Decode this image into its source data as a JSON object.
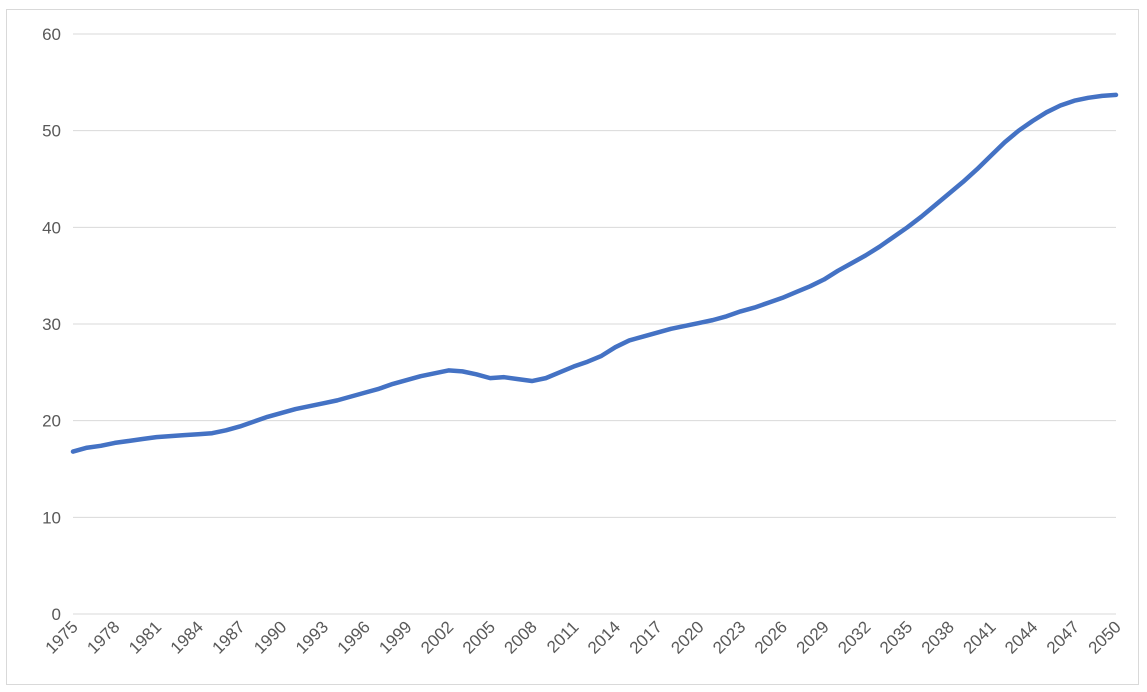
{
  "chart_data": {
    "type": "line",
    "title": "",
    "xlabel": "",
    "ylabel": "",
    "ylim": [
      0,
      60
    ],
    "y_ticks": [
      "0",
      "10",
      "20",
      "30",
      "40",
      "50",
      "60"
    ],
    "x_ticks": [
      "1975",
      "1978",
      "1981",
      "1984",
      "1987",
      "1990",
      "1993",
      "1996",
      "1999",
      "2002",
      "2005",
      "2008",
      "2011",
      "2014",
      "2017",
      "2020",
      "2023",
      "2026",
      "2029",
      "2032",
      "2035",
      "2038",
      "2041",
      "2044",
      "2047",
      "2050"
    ],
    "grid": "horizontal",
    "legend": "none",
    "colors": {
      "line": "#4472c4",
      "grid": "#d9d9d9",
      "text": "#595959"
    },
    "x": [
      1975,
      1976,
      1977,
      1978,
      1979,
      1980,
      1981,
      1982,
      1983,
      1984,
      1985,
      1986,
      1987,
      1988,
      1989,
      1990,
      1991,
      1992,
      1993,
      1994,
      1995,
      1996,
      1997,
      1998,
      1999,
      2000,
      2001,
      2002,
      2003,
      2004,
      2005,
      2006,
      2007,
      2008,
      2009,
      2010,
      2011,
      2012,
      2013,
      2014,
      2015,
      2016,
      2017,
      2018,
      2019,
      2020,
      2021,
      2022,
      2023,
      2024,
      2025,
      2026,
      2027,
      2028,
      2029,
      2030,
      2031,
      2032,
      2033,
      2034,
      2035,
      2036,
      2037,
      2038,
      2039,
      2040,
      2041,
      2042,
      2043,
      2044,
      2045,
      2046,
      2047,
      2048,
      2049,
      2050
    ],
    "series": [
      {
        "values": [
          16.8,
          17.2,
          17.4,
          17.7,
          17.9,
          18.1,
          18.3,
          18.4,
          18.5,
          18.6,
          18.7,
          19.0,
          19.4,
          19.9,
          20.4,
          20.8,
          21.2,
          21.5,
          21.8,
          22.1,
          22.5,
          22.9,
          23.3,
          23.8,
          24.2,
          24.6,
          24.9,
          25.2,
          25.1,
          24.8,
          24.4,
          24.5,
          24.3,
          24.1,
          24.4,
          25.0,
          25.6,
          26.1,
          26.7,
          27.6,
          28.3,
          28.7,
          29.1,
          29.5,
          29.8,
          30.1,
          30.4,
          30.8,
          31.3,
          31.7,
          32.2,
          32.7,
          33.3,
          33.9,
          34.6,
          35.5,
          36.3,
          37.1,
          38.0,
          39.0,
          40.0,
          41.1,
          42.3,
          43.5,
          44.7,
          46.0,
          47.4,
          48.8,
          50.0,
          51.0,
          51.9,
          52.6,
          53.1,
          53.4,
          53.6,
          53.7
        ]
      }
    ]
  }
}
